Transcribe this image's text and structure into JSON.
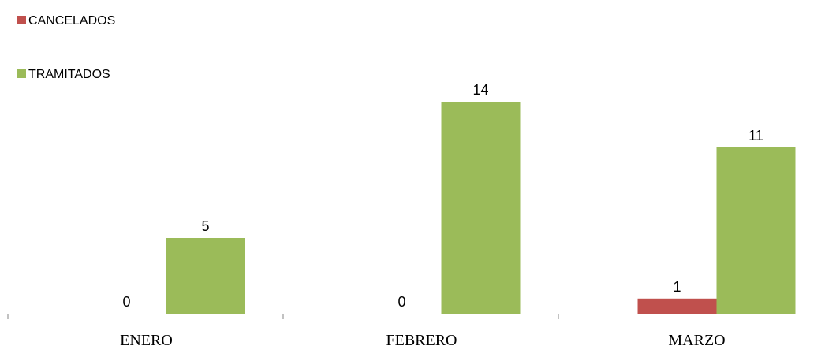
{
  "chart_data": {
    "type": "bar",
    "categories": [
      "ENERO",
      "FEBRERO",
      "MARZO"
    ],
    "series": [
      {
        "name": "CANCELADOS",
        "values": [
          0,
          0,
          1
        ],
        "color": "#c0504d"
      },
      {
        "name": "TRAMITADOS",
        "values": [
          5,
          14,
          11
        ],
        "color": "#9bbb59"
      }
    ],
    "ylim": [
      0,
      14
    ],
    "grid": false,
    "legend": "top-left",
    "data_labels": true,
    "title": "",
    "xlabel": "",
    "ylabel": ""
  }
}
